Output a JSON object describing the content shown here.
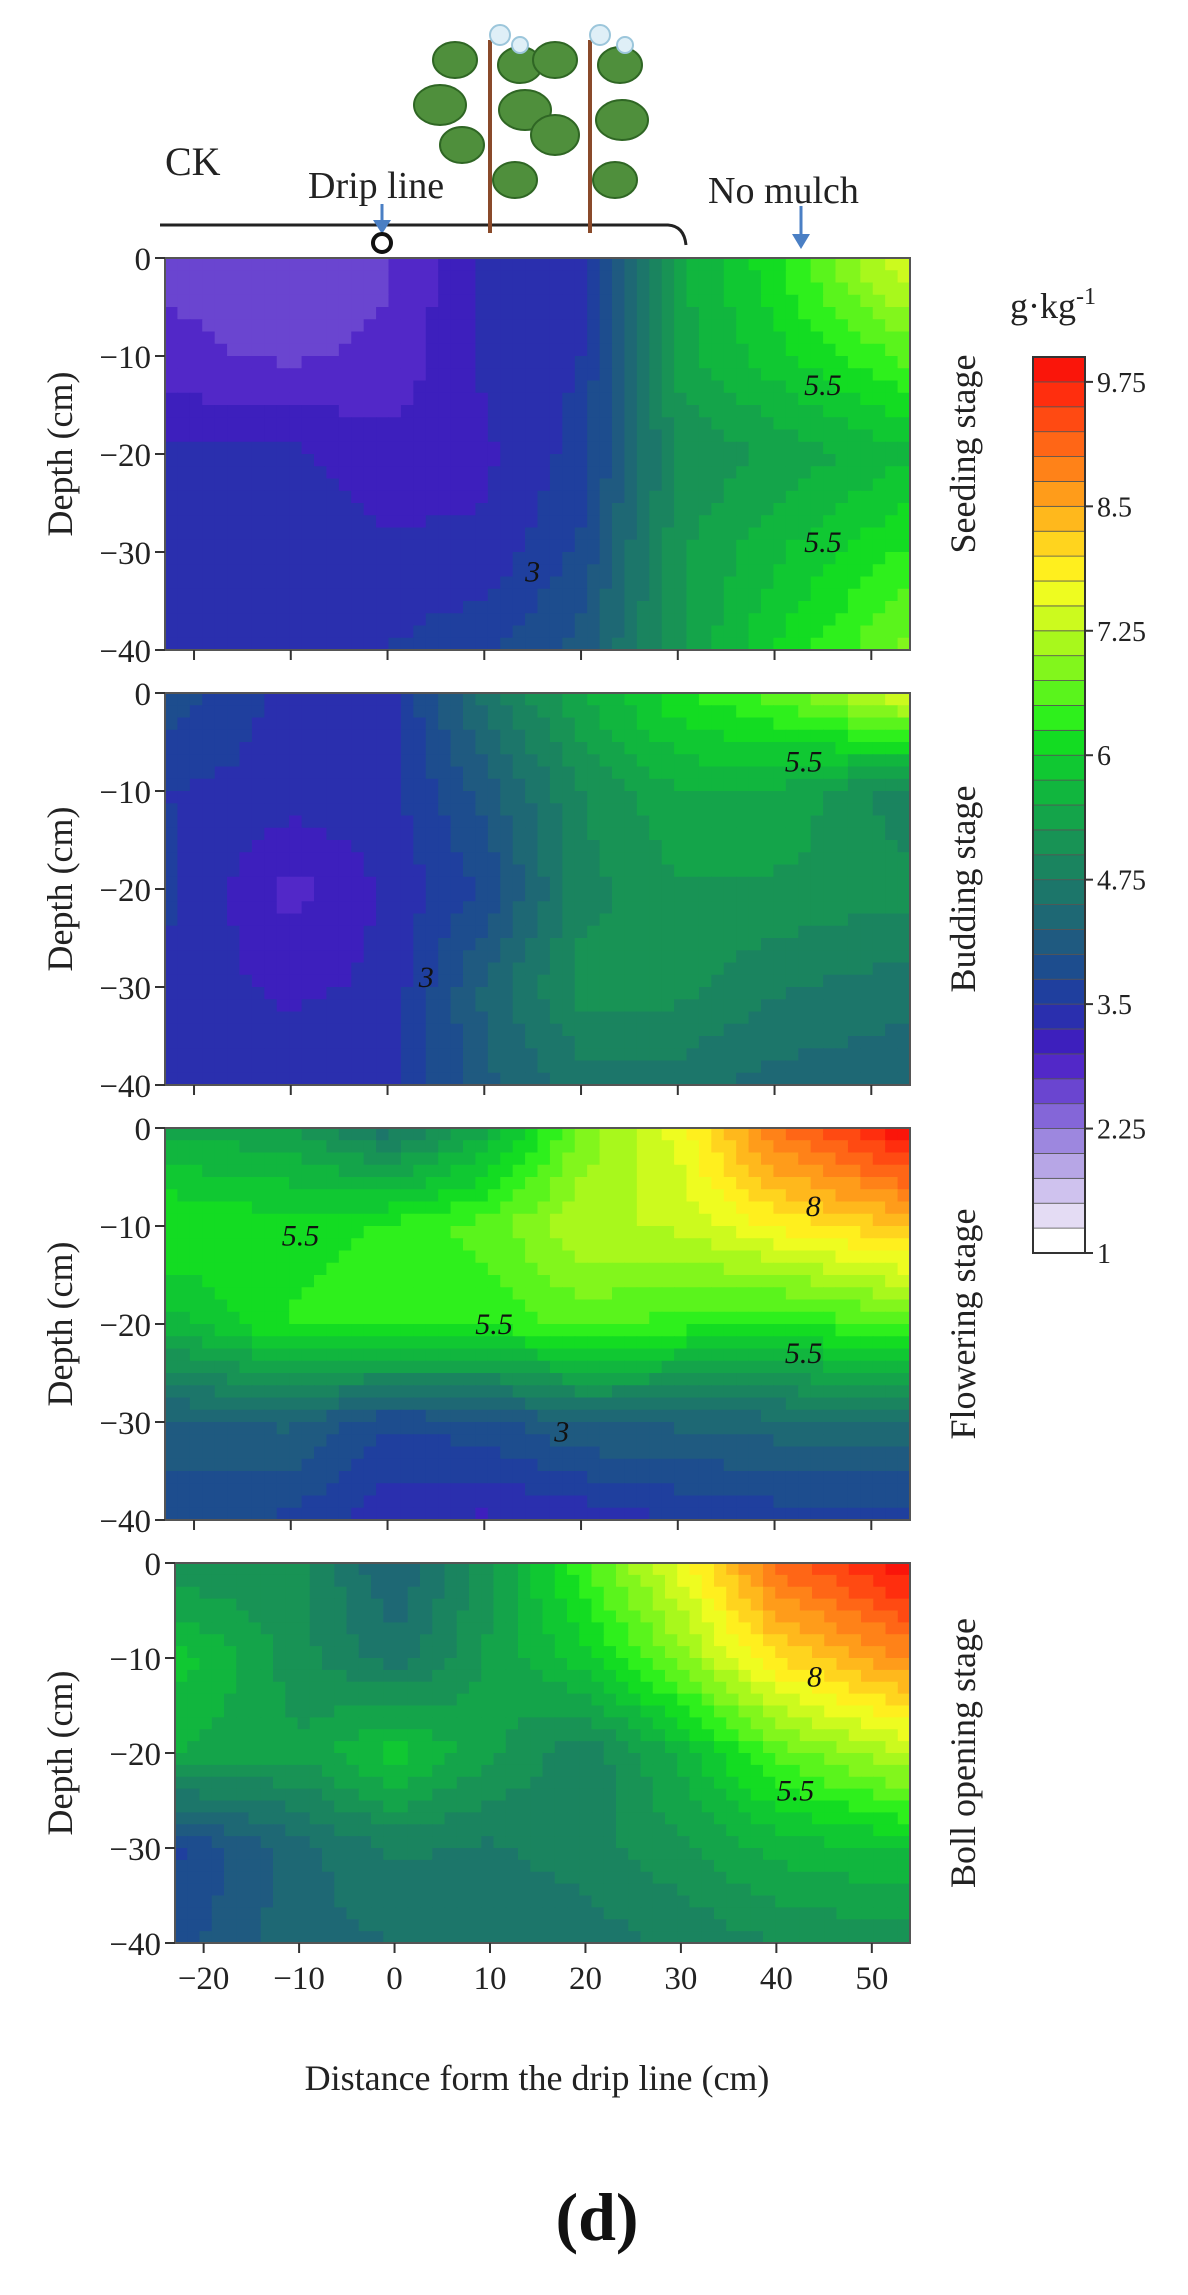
{
  "header": {
    "ck_label": "CK",
    "drip_line_label": "Drip line",
    "no_mulch_label": "No mulch"
  },
  "figure_label": "(d)",
  "colorbar": {
    "unit": "g·kg",
    "unit_exponent": "-1",
    "tick_labels": [
      "9.75",
      "8.5",
      "7.25",
      "6",
      "4.75",
      "3.5",
      "2.25",
      "1"
    ],
    "tick_values": [
      9.75,
      8.5,
      7.25,
      6,
      4.75,
      3.5,
      2.25,
      1
    ],
    "levels": [
      1,
      1.25,
      1.5,
      1.75,
      2,
      2.25,
      2.5,
      2.75,
      3,
      3.25,
      3.5,
      3.75,
      4,
      4.25,
      4.5,
      4.75,
      5,
      5.25,
      5.5,
      5.75,
      6,
      6.25,
      6.5,
      6.75,
      7,
      7.25,
      7.5,
      7.75,
      8,
      8.25,
      8.5,
      8.75,
      9,
      9.25,
      9.5,
      9.75,
      10
    ],
    "colors": [
      "#ffffff",
      "#e4dcf4",
      "#cfc2ee",
      "#b7a6e6",
      "#9d87df",
      "#8466d8",
      "#6a45d0",
      "#5228c8",
      "#3d1fbd",
      "#2a2fae",
      "#1f3f9e",
      "#1d4d8e",
      "#1f5a80",
      "#1e6874",
      "#1c766a",
      "#1a845f",
      "#189355",
      "#14a44a",
      "#11b63e",
      "#10c832",
      "#13dc22",
      "#2ef01c",
      "#5af41c",
      "#82f61c",
      "#a8f81c",
      "#ccfa1e",
      "#eefc20",
      "#ffef1e",
      "#ffd41e",
      "#ffb81c",
      "#ff9c1a",
      "#ff8218",
      "#ff6616",
      "#ff4a12",
      "#ff2e0e",
      "#fa150a"
    ]
  },
  "chart_data": [
    {
      "type": "heatmap",
      "title": "",
      "stage_label": "Seeding stage",
      "xlabel": "",
      "ylabel": "Depth (cm)",
      "x_ticks": [
        -20,
        -10,
        0,
        10,
        20,
        30,
        40,
        50
      ],
      "y_ticks": [
        0,
        -10,
        -20,
        -30,
        -40
      ],
      "xlim": [
        -23,
        54
      ],
      "ylim": [
        -40,
        0
      ],
      "contour_labels": [
        {
          "text": "5.5",
          "x": 45,
          "y": -14
        },
        {
          "text": "5.5",
          "x": 45,
          "y": -30
        },
        {
          "text": "3",
          "x": 15,
          "y": -33
        }
      ],
      "x": [
        -23,
        -10,
        0,
        10,
        20,
        30,
        40,
        54
      ],
      "y": [
        0,
        -10,
        -20,
        -30,
        -40
      ],
      "values": [
        [
          2.7,
          2.7,
          2.7,
          3.3,
          3.4,
          5.4,
          6.2,
          7.6
        ],
        [
          2.8,
          2.7,
          2.8,
          3.3,
          3.5,
          5.4,
          5.9,
          6.6
        ],
        [
          3.3,
          3.3,
          3.1,
          3.2,
          3.6,
          5.0,
          5.3,
          5.7
        ],
        [
          3.4,
          3.4,
          3.3,
          3.3,
          3.8,
          5.2,
          5.7,
          6.3
        ],
        [
          3.4,
          3.4,
          3.5,
          3.7,
          4.1,
          5.2,
          6.0,
          6.9
        ]
      ]
    },
    {
      "type": "heatmap",
      "title": "",
      "stage_label": "Budding stage",
      "xlabel": "",
      "ylabel": "Depth (cm)",
      "x_ticks": [
        -20,
        -10,
        0,
        10,
        20,
        30,
        40,
        50
      ],
      "y_ticks": [
        0,
        -10,
        -20,
        -30,
        -40
      ],
      "xlim": [
        -23,
        54
      ],
      "ylim": [
        -40,
        0
      ],
      "contour_labels": [
        {
          "text": "5.5",
          "x": 43,
          "y": -8
        },
        {
          "text": "3",
          "x": 4,
          "y": -30
        }
      ],
      "x": [
        -23,
        -10,
        0,
        10,
        20,
        30,
        40,
        54
      ],
      "y": [
        0,
        -10,
        -20,
        -30,
        -40
      ],
      "values": [
        [
          3.9,
          3.4,
          3.4,
          4.6,
          5.5,
          6.2,
          6.6,
          7.6
        ],
        [
          3.5,
          3.4,
          3.4,
          4.1,
          5.0,
          5.5,
          5.5,
          4.8
        ],
        [
          3.6,
          2.9,
          3.3,
          3.8,
          4.9,
          5.2,
          5.2,
          5.1
        ],
        [
          3.4,
          3.2,
          3.3,
          4.3,
          5.1,
          5.1,
          4.8,
          4.6
        ],
        [
          3.4,
          3.4,
          3.4,
          4.2,
          4.6,
          4.6,
          4.4,
          4.3
        ]
      ]
    },
    {
      "type": "heatmap",
      "title": "",
      "stage_label": "Flowering stage",
      "xlabel": "",
      "ylabel": "Depth (cm)",
      "x_ticks": [
        -20,
        -10,
        0,
        10,
        20,
        30,
        40,
        50
      ],
      "y_ticks": [
        0,
        -10,
        -20,
        -30,
        -40
      ],
      "xlim": [
        -23,
        54
      ],
      "ylim": [
        -40,
        0
      ],
      "contour_labels": [
        {
          "text": "5.5",
          "x": -9,
          "y": -12
        },
        {
          "text": "8",
          "x": 44,
          "y": -9
        },
        {
          "text": "5.5",
          "x": 11,
          "y": -21
        },
        {
          "text": "5.5",
          "x": 43,
          "y": -24
        },
        {
          "text": "3",
          "x": 18,
          "y": -32
        }
      ],
      "x": [
        -23,
        -10,
        0,
        10,
        20,
        30,
        40,
        54
      ],
      "y": [
        0,
        -10,
        -20,
        -30,
        -40
      ],
      "values": [
        [
          5.4,
          5.3,
          4.6,
          5.4,
          6.8,
          7.6,
          9.0,
          10.0
        ],
        [
          6.3,
          6.1,
          6.3,
          6.6,
          7.2,
          7.3,
          7.8,
          8.3
        ],
        [
          5.6,
          6.3,
          6.4,
          6.3,
          6.6,
          6.4,
          6.2,
          6.6
        ],
        [
          4.2,
          4.3,
          3.8,
          3.9,
          4.3,
          4.3,
          4.4,
          4.5
        ],
        [
          3.8,
          3.7,
          3.3,
          3.2,
          3.3,
          3.5,
          3.6,
          3.6
        ]
      ]
    },
    {
      "type": "heatmap",
      "title": "",
      "stage_label": "Boll opening stage",
      "xlabel": "Distance form the drip line (cm)",
      "ylabel": "Depth (cm)",
      "x_ticks": [
        -20,
        -10,
        0,
        10,
        20,
        30,
        40,
        50
      ],
      "y_ticks": [
        0,
        -10,
        -20,
        -30,
        -40
      ],
      "xlim": [
        -23,
        54
      ],
      "ylim": [
        -40,
        0
      ],
      "contour_labels": [
        {
          "text": "8",
          "x": 44,
          "y": -13
        },
        {
          "text": "5.5",
          "x": 42,
          "y": -25
        }
      ],
      "x": [
        -23,
        -10,
        0,
        10,
        20,
        30,
        40,
        54
      ],
      "y": [
        0,
        -10,
        -20,
        -30,
        -40
      ],
      "values": [
        [
          5.0,
          5.1,
          4.2,
          5.2,
          6.5,
          7.6,
          9.1,
          10.0
        ],
        [
          5.9,
          5.1,
          4.6,
          5.3,
          5.9,
          6.9,
          8.0,
          8.8
        ],
        [
          5.5,
          5.3,
          5.9,
          5.3,
          4.8,
          5.6,
          6.6,
          7.3
        ],
        [
          3.7,
          4.4,
          4.8,
          4.7,
          4.9,
          5.2,
          5.6,
          5.8
        ],
        [
          3.9,
          4.4,
          4.5,
          4.5,
          4.6,
          4.8,
          5.0,
          5.1
        ]
      ]
    }
  ]
}
